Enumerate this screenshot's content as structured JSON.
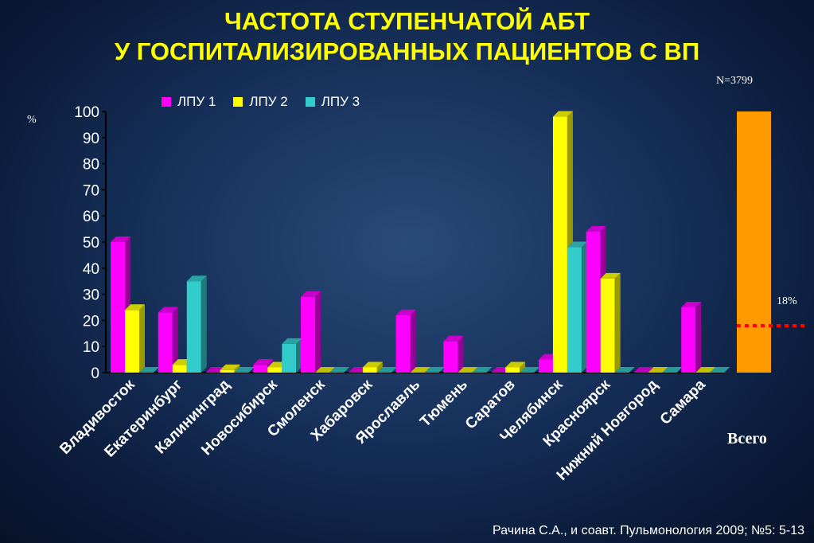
{
  "title_line1": "ЧАСТОТА СТУПЕНЧАТОЙ АБТ",
  "title_line2": "У ГОСПИТАЛИЗИРОВАННЫХ ПАЦИЕНТОВ С ВП",
  "n_label": "N=3799",
  "y_unit": "%",
  "citation": "Рачина С.А., и соавт. Пульмонология 2009; №5: 5-13",
  "total_label": "Всего",
  "total_marker_label": "18%",
  "colors": {
    "lpu1": "#ff00ff",
    "lpu2": "#ffff00",
    "lpu3": "#33cccc",
    "total": "#ff9900",
    "marker": "#ff0000"
  },
  "chart_data": {
    "type": "bar",
    "categories": [
      "Владивосток",
      "Екатеринбург",
      "Калининград",
      "Новосибирск",
      "Смоленск",
      "Хабаровск",
      "Ярославль",
      "Тюмень",
      "Саратов",
      "Челябинск",
      "Красноярск",
      "Нижний Новгород",
      "Самара"
    ],
    "series": [
      {
        "name": "ЛПУ 1",
        "values": [
          50,
          23,
          0,
          3,
          29,
          0,
          22,
          12,
          0,
          5,
          54,
          0,
          25
        ]
      },
      {
        "name": "ЛПУ 2",
        "values": [
          24,
          3,
          1,
          2,
          0,
          2,
          0,
          0,
          2,
          98,
          36,
          0,
          0
        ]
      },
      {
        "name": "ЛПУ 3",
        "values": [
          0,
          35,
          0,
          11,
          0,
          0,
          0,
          0,
          0,
          48,
          0,
          0,
          0
        ]
      }
    ],
    "ylim": [
      0,
      100
    ],
    "yticks": [
      "0",
      "10",
      "20",
      "30",
      "40",
      "50",
      "60",
      "70",
      "80",
      "90",
      "100"
    ],
    "ylabel": "%",
    "total": {
      "label": "Всего",
      "value": 100,
      "marker_value": 18,
      "marker_label": "18%"
    }
  }
}
